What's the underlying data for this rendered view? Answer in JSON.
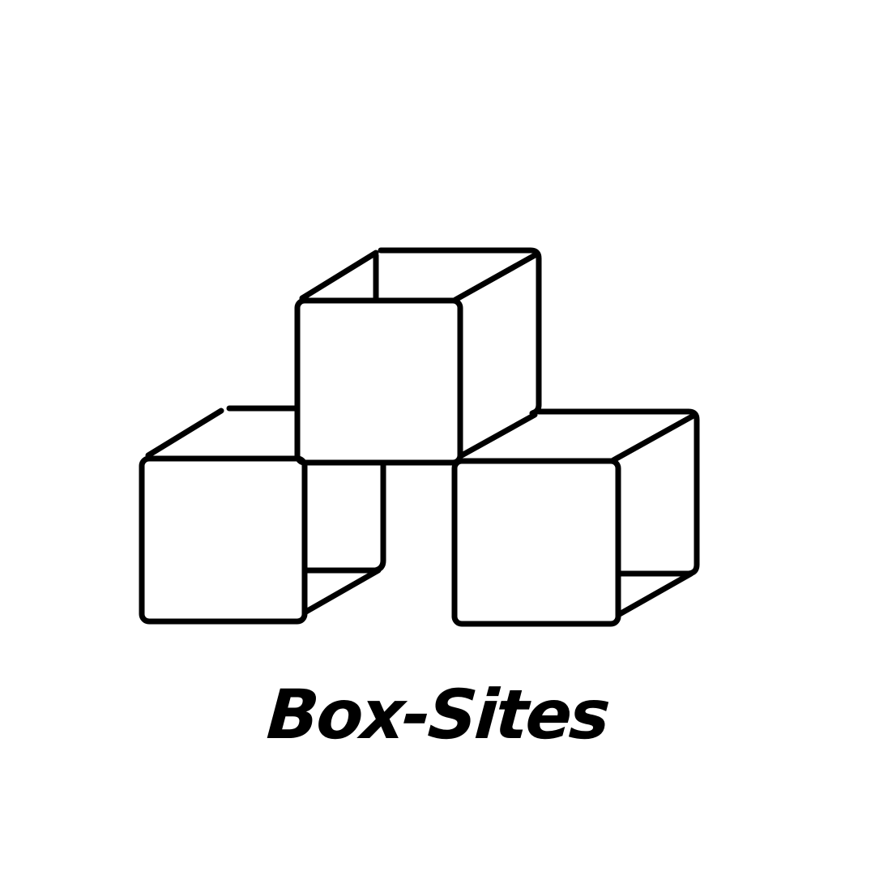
{
  "brand": {
    "name": "Box-Sites",
    "logo_icon": "stacked-boxes-icon"
  },
  "colors": {
    "background": "#ffffff",
    "ink": "#000000"
  }
}
